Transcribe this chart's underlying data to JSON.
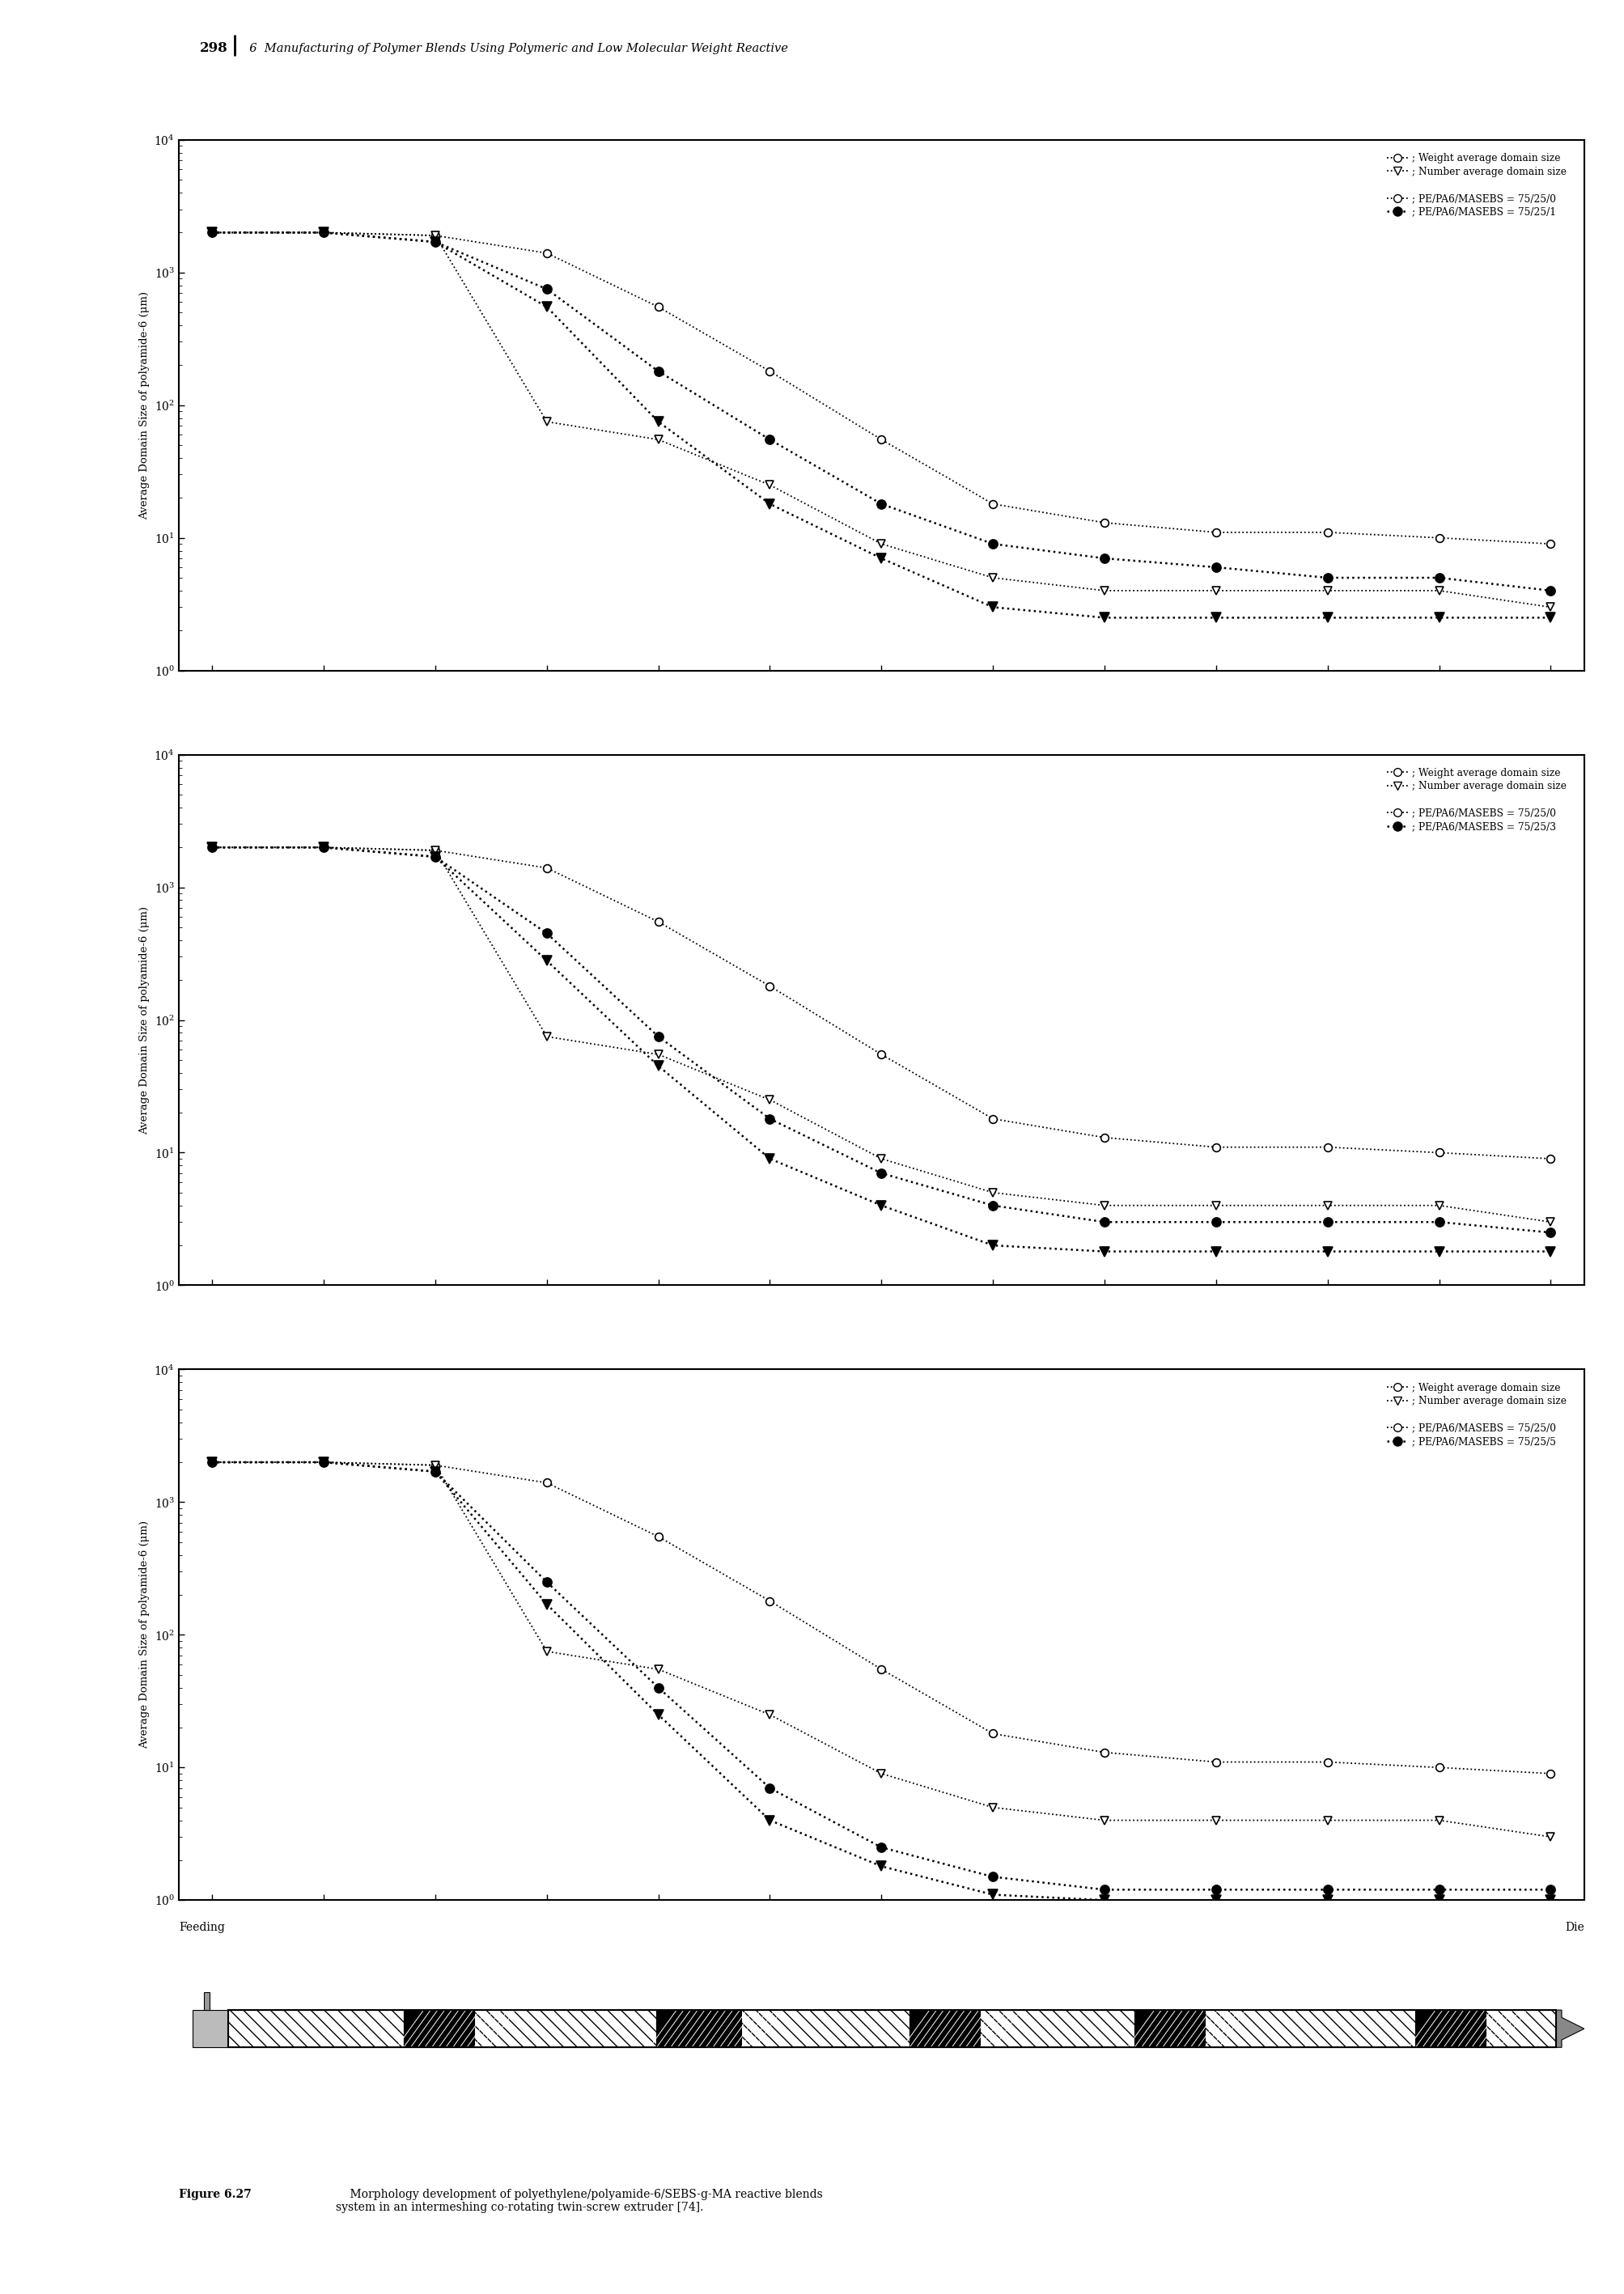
{
  "header_num": "298",
  "header_text": "6  Manufacturing of Polymer Blends Using Polymeric and Low Molecular Weight Reactive",
  "ylabel": "Average Domain Size of polyamide-6 (μm)",
  "xlabel_feeding": "Feeding",
  "xlabel_die": "Die",
  "ylim_low": 1,
  "ylim_high": 10000,
  "x_positions": [
    0,
    1,
    2,
    3,
    4,
    5,
    6,
    7,
    8,
    9,
    10,
    11,
    12
  ],
  "panels": [
    {
      "sebs": "1",
      "oc": [
        2000,
        2000,
        1900,
        1400,
        550,
        180,
        55,
        18,
        13,
        11,
        11,
        10,
        9
      ],
      "ot": [
        2000,
        2000,
        1900,
        75,
        55,
        25,
        9,
        5,
        4,
        4,
        4,
        4,
        3
      ],
      "fc": [
        2000,
        2000,
        1700,
        750,
        180,
        55,
        18,
        9,
        7,
        6,
        5,
        5,
        4
      ],
      "ft": [
        2000,
        2000,
        1700,
        550,
        75,
        18,
        7,
        3,
        2.5,
        2.5,
        2.5,
        2.5,
        2.5
      ]
    },
    {
      "sebs": "3",
      "oc": [
        2000,
        2000,
        1900,
        1400,
        550,
        180,
        55,
        18,
        13,
        11,
        11,
        10,
        9
      ],
      "ot": [
        2000,
        2000,
        1900,
        75,
        55,
        25,
        9,
        5,
        4,
        4,
        4,
        4,
        3
      ],
      "fc": [
        2000,
        2000,
        1700,
        450,
        75,
        18,
        7,
        4,
        3,
        3,
        3,
        3,
        2.5
      ],
      "ft": [
        2000,
        2000,
        1700,
        280,
        45,
        9,
        4,
        2,
        1.8,
        1.8,
        1.8,
        1.8,
        1.8
      ]
    },
    {
      "sebs": "5",
      "oc": [
        2000,
        2000,
        1900,
        1400,
        550,
        180,
        55,
        18,
        13,
        11,
        11,
        10,
        9
      ],
      "ot": [
        2000,
        2000,
        1900,
        75,
        55,
        25,
        9,
        5,
        4,
        4,
        4,
        4,
        3
      ],
      "fc": [
        2000,
        2000,
        1700,
        250,
        40,
        7,
        2.5,
        1.5,
        1.2,
        1.2,
        1.2,
        1.2,
        1.2
      ],
      "ft": [
        2000,
        2000,
        1700,
        170,
        25,
        4,
        1.8,
        1.1,
        1.0,
        1.0,
        1.0,
        1.0,
        1.0
      ]
    }
  ],
  "caption_bold": "Figure 6.27",
  "caption_normal": "    Morphology development of polyethylene/polyamide-6/SEBS-g-MA reactive blends\nsystem in an intermeshing co-rotating twin-screw extruder [74].",
  "marker_size_open": 7,
  "marker_size_filled": 8,
  "lw_open": 1.3,
  "lw_filled": 1.8
}
